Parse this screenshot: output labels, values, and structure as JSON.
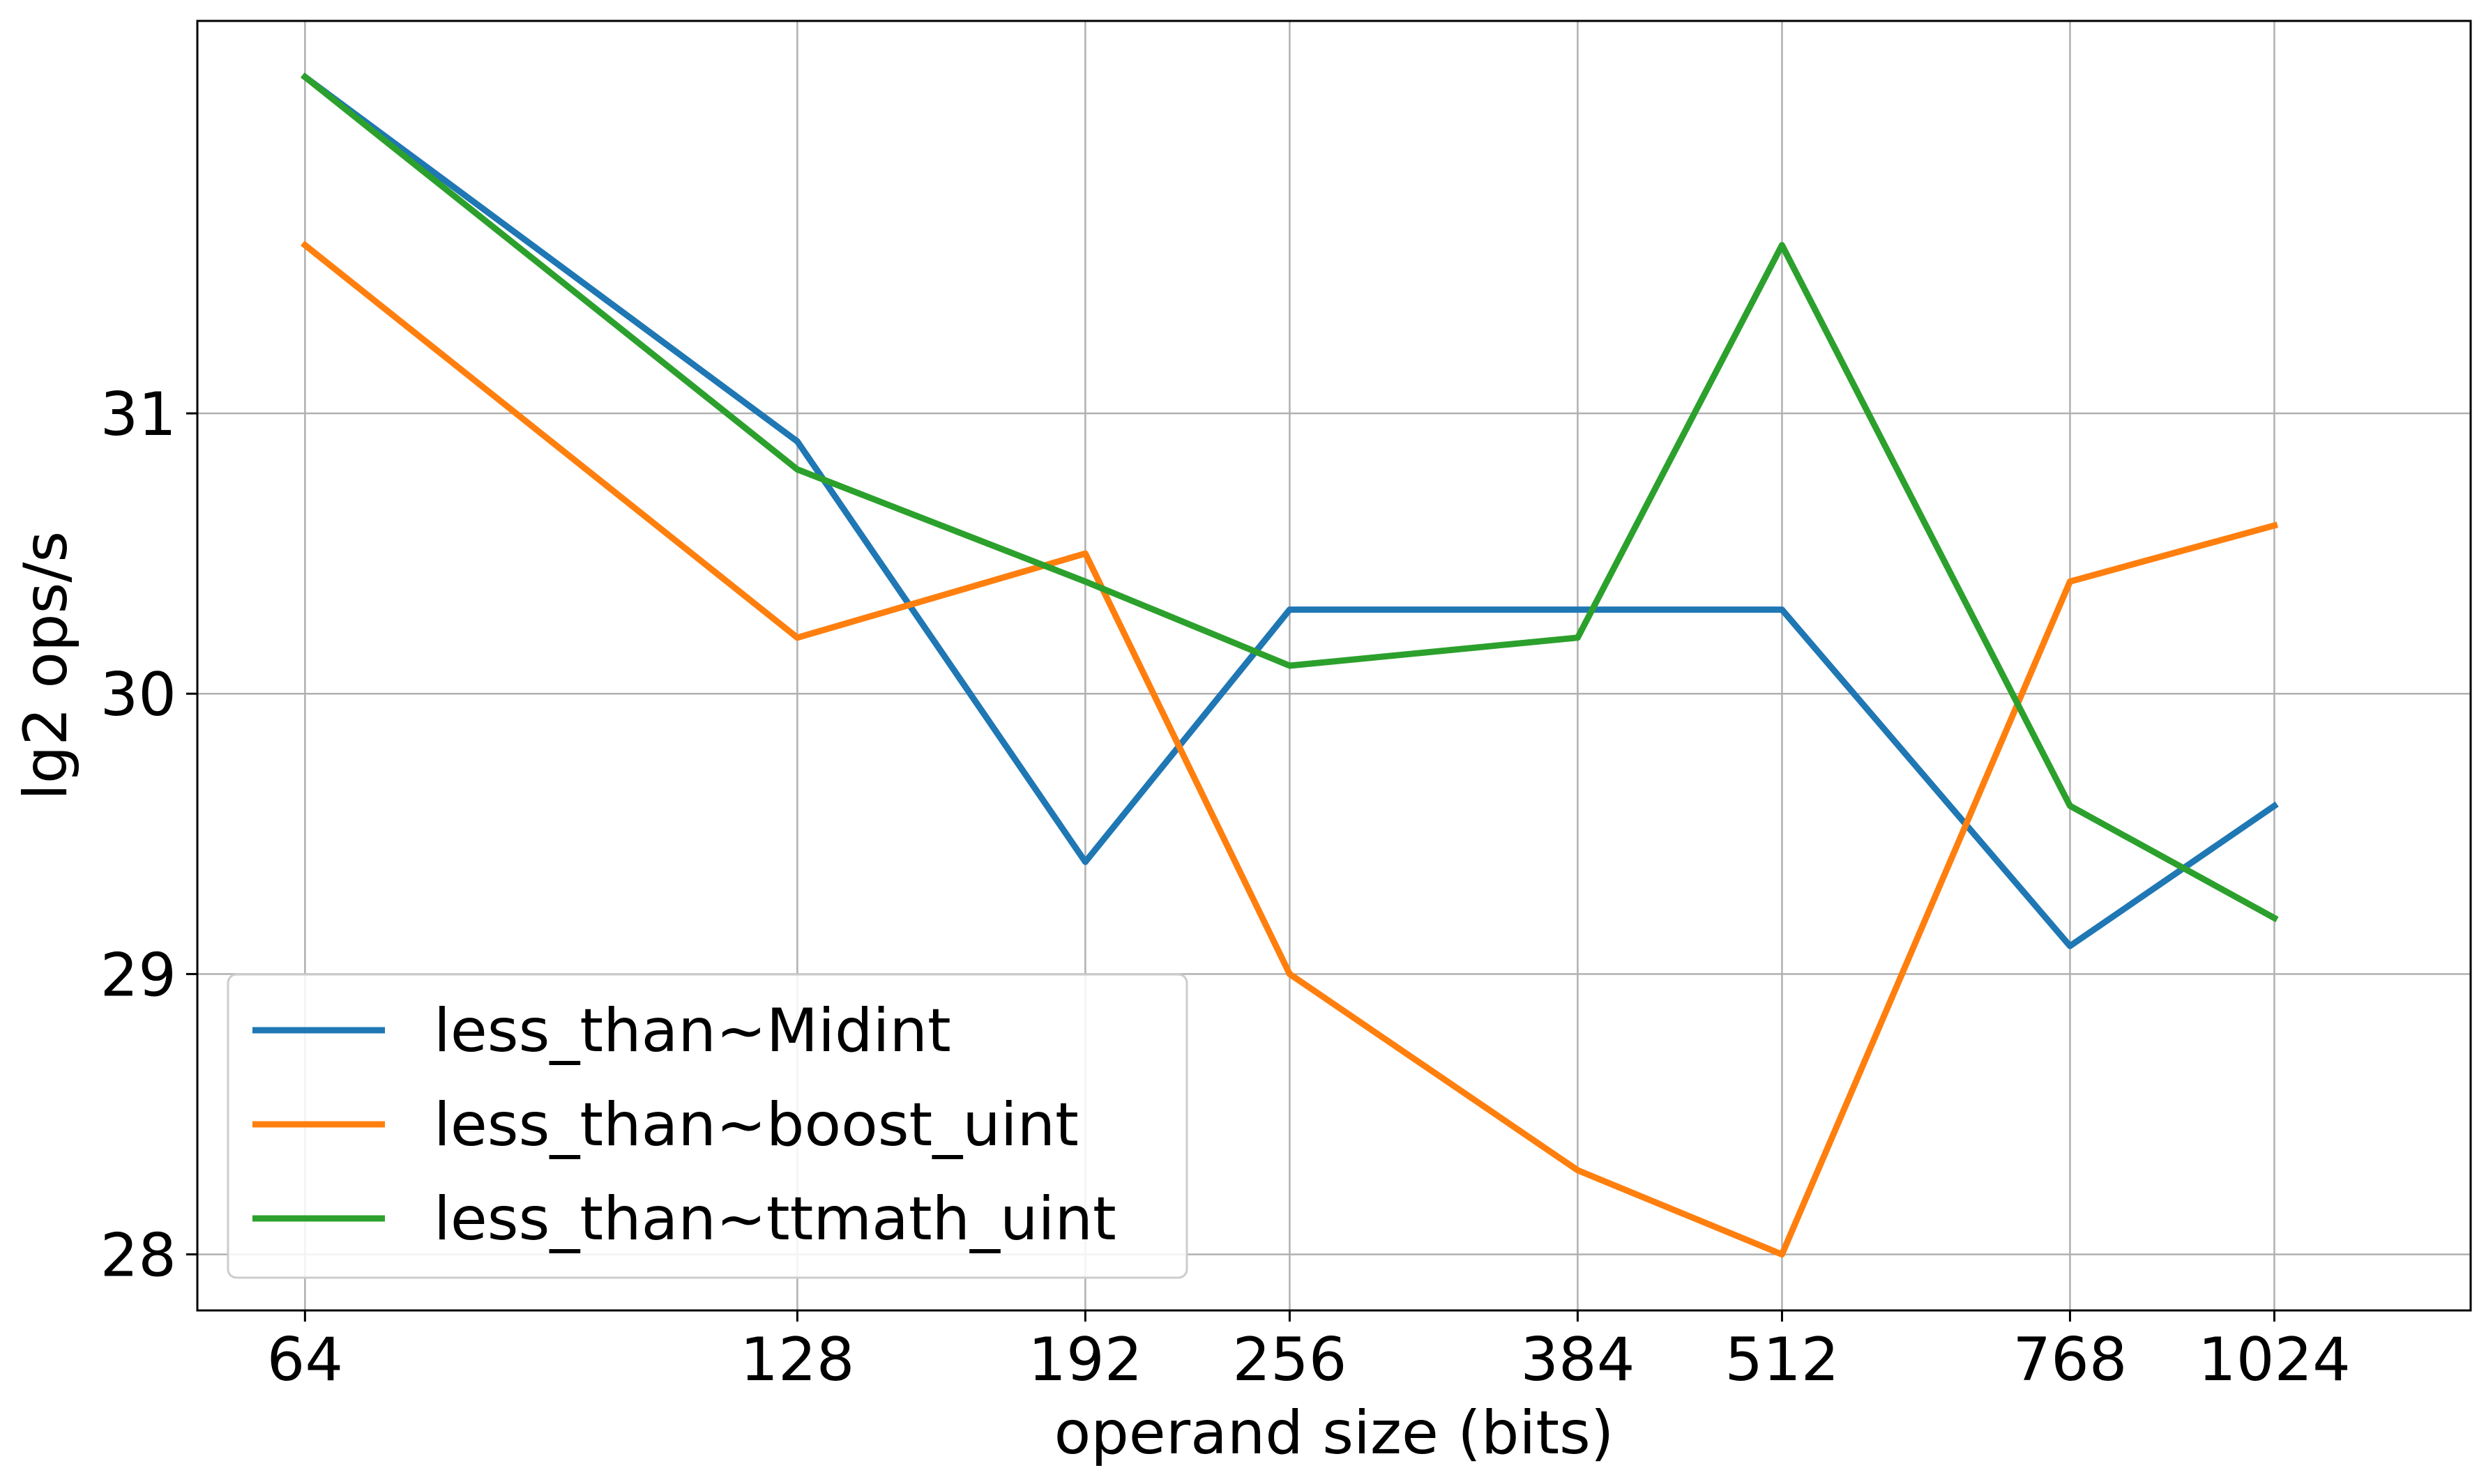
{
  "chart_data": {
    "type": "line",
    "xlabel": "operand size (bits)",
    "ylabel": "lg2 ops/s",
    "x_scale": "log2",
    "x": [
      64,
      128,
      192,
      256,
      384,
      512,
      768,
      1024
    ],
    "x_tick_labels": [
      "64",
      "128",
      "192",
      "256",
      "384",
      "512",
      "768",
      "1024"
    ],
    "y_ticks": [
      28,
      29,
      30,
      31
    ],
    "y_tick_labels": [
      "28",
      "29",
      "30",
      "31"
    ],
    "xlim": [
      55,
      1350
    ],
    "ylim": [
      27.8,
      32.4
    ],
    "grid": true,
    "legend_position": "lower-left",
    "series": [
      {
        "name": "less_than~Midint",
        "color": "#1f77b4",
        "values": [
          32.2,
          30.9,
          29.4,
          30.3,
          30.3,
          30.3,
          29.1,
          29.6
        ]
      },
      {
        "name": "less_than~boost_uint",
        "color": "#ff7f0e",
        "values": [
          31.6,
          30.2,
          30.5,
          29.0,
          28.3,
          28.0,
          30.4,
          30.6
        ]
      },
      {
        "name": "less_than~ttmath_uint",
        "color": "#2ca02c",
        "values": [
          32.2,
          30.8,
          30.4,
          30.1,
          30.2,
          31.6,
          29.6,
          29.2
        ]
      }
    ]
  }
}
